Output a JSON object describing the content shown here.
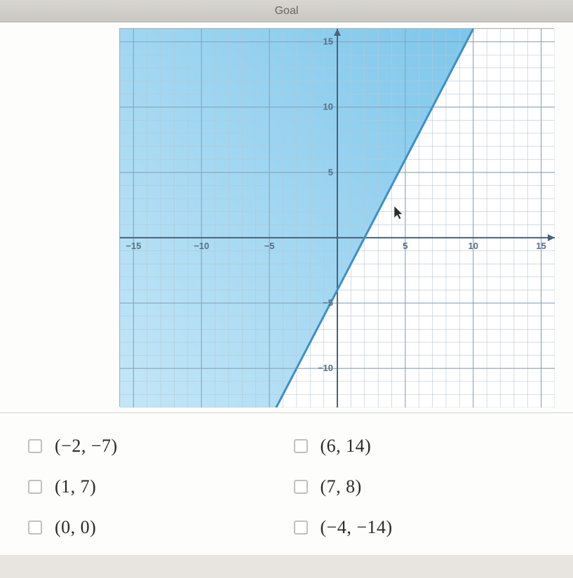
{
  "header": {
    "title": "Goal"
  },
  "chart": {
    "type": "inequality-region",
    "xlim": [
      -16,
      16
    ],
    "ylim": [
      -13,
      16
    ],
    "xtick_step": 5,
    "ytick_step": 5,
    "xticks": [
      -15,
      -10,
      -5,
      5,
      10,
      15
    ],
    "yticks": [
      -10,
      -5,
      5,
      10,
      15
    ],
    "minor_grid_step": 1,
    "grid_color": "#b9c7d4",
    "major_grid_color": "#8aa3b8",
    "axis_color": "#4a6278",
    "axis_label_color": "#5a6f82",
    "axis_label_fontsize": 13,
    "background_color": "#ffffff",
    "shaded_region": {
      "inequality": "y >= 2x - 4",
      "line_points": [
        [
          -4.5,
          -13
        ],
        [
          10,
          16
        ]
      ],
      "line_color": "#3d8fc9",
      "line_width": 3,
      "fill_gradient_from": "#b3e0f5",
      "fill_gradient_to": "#58b6e6",
      "fill_opacity": 0.78
    },
    "cursor_position": [
      4.2,
      2.4
    ]
  },
  "choices": [
    {
      "id": "a",
      "label": "(−2, −7)"
    },
    {
      "id": "b",
      "label": "(6, 14)"
    },
    {
      "id": "c",
      "label": "(1, 7)"
    },
    {
      "id": "d",
      "label": "(7, 8)"
    },
    {
      "id": "e",
      "label": "(0, 0)"
    },
    {
      "id": "f",
      "label": "(−4, −14)"
    }
  ]
}
